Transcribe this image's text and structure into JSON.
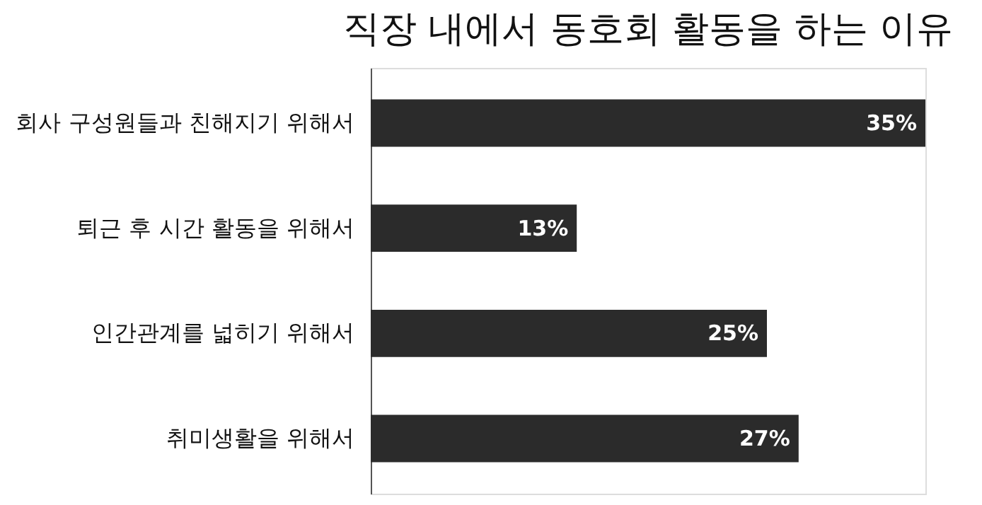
{
  "chart_data": {
    "type": "bar",
    "orientation": "horizontal",
    "title": "직장 내에서 동호회 활동을 하는 이유",
    "categories": [
      "회사 구성원들과 친해지기 위해서",
      "퇴근 후 시간 활동을 위해서",
      "인간관계를 넓히기 위해서",
      "취미생활을 위해서"
    ],
    "values": [
      35,
      13,
      25,
      27
    ],
    "value_labels": [
      "35%",
      "13%",
      "25%",
      "27%"
    ],
    "color": "#2b2b2b"
  }
}
